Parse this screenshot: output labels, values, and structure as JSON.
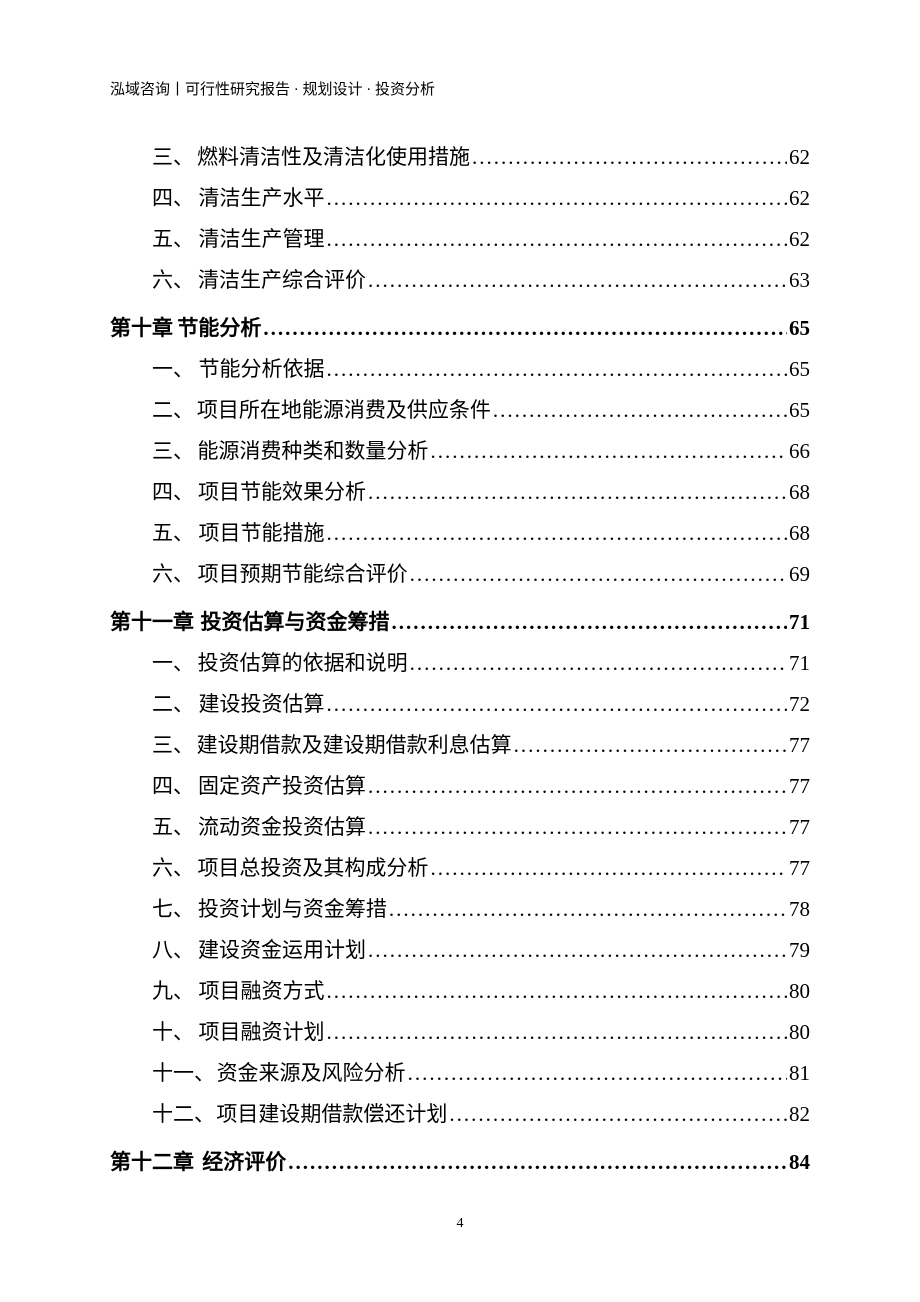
{
  "header": "泓域咨询丨可行性研究报告 · 规划设计 · 投资分析",
  "page_number": "4",
  "dots_char": ".",
  "colors": {
    "text": "#000000",
    "background": "#ffffff"
  },
  "typography": {
    "header_fontsize": 15,
    "body_fontsize": 21,
    "footer_fontsize": 14,
    "chapter_weight": 700,
    "section_weight": 400
  },
  "toc": [
    {
      "level": 2,
      "num": "三、",
      "title": "燃料清洁性及清洁化使用措施",
      "page": "62"
    },
    {
      "level": 2,
      "num": "四、",
      "title": "清洁生产水平",
      "page": "62"
    },
    {
      "level": 2,
      "num": "五、",
      "title": "清洁生产管理",
      "page": "62"
    },
    {
      "level": 2,
      "num": "六、",
      "title": "清洁生产综合评价",
      "page": "63"
    },
    {
      "level": 1,
      "num": "第十章",
      "title": "节能分析",
      "page": "65"
    },
    {
      "level": 2,
      "num": "一、",
      "title": "节能分析依据",
      "page": "65"
    },
    {
      "level": 2,
      "num": "二、",
      "title": "项目所在地能源消费及供应条件",
      "page": "65"
    },
    {
      "level": 2,
      "num": "三、",
      "title": "能源消费种类和数量分析",
      "page": "66"
    },
    {
      "level": 2,
      "num": "四、",
      "title": "项目节能效果分析",
      "page": "68"
    },
    {
      "level": 2,
      "num": "五、",
      "title": "项目节能措施",
      "page": "68"
    },
    {
      "level": 2,
      "num": "六、",
      "title": "项目预期节能综合评价",
      "page": "69"
    },
    {
      "level": 1,
      "num": "第十一章",
      "title": "投资估算与资金筹措",
      "page": "71",
      "wider": true
    },
    {
      "level": 2,
      "num": "一、",
      "title": "投资估算的依据和说明",
      "page": "71"
    },
    {
      "level": 2,
      "num": "二、",
      "title": "建设投资估算",
      "page": "72"
    },
    {
      "level": 2,
      "num": "三、",
      "title": "建设期借款及建设期借款利息估算",
      "page": "77"
    },
    {
      "level": 2,
      "num": "四、",
      "title": "固定资产投资估算",
      "page": "77"
    },
    {
      "level": 2,
      "num": "五、",
      "title": "流动资金投资估算",
      "page": "77"
    },
    {
      "level": 2,
      "num": "六、",
      "title": "项目总投资及其构成分析",
      "page": "77"
    },
    {
      "level": 2,
      "num": "七、",
      "title": "投资计划与资金筹措",
      "page": "78"
    },
    {
      "level": 2,
      "num": "八、",
      "title": "建设资金运用计划",
      "page": "79"
    },
    {
      "level": 2,
      "num": "九、",
      "title": "项目融资方式",
      "page": "80"
    },
    {
      "level": 2,
      "num": "十、",
      "title": "项目融资计划",
      "page": "80"
    },
    {
      "level": 2,
      "num": "十一、",
      "title": "资金来源及风险分析",
      "page": "81",
      "tight": true
    },
    {
      "level": 2,
      "num": "十二、",
      "title": "项目建设期借款偿还计划",
      "page": "82",
      "tight": true
    },
    {
      "level": 1,
      "num": "第十二章",
      "title": "经济评价",
      "page": "84",
      "wider": true
    }
  ]
}
